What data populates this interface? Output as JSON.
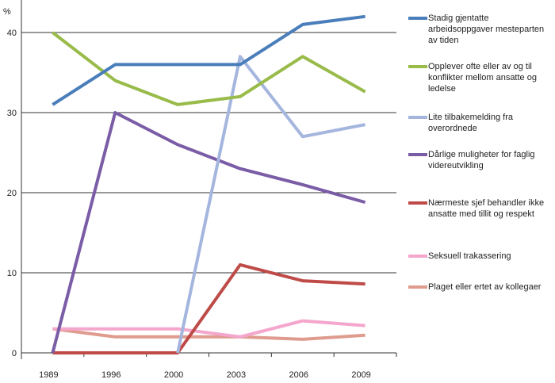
{
  "chart_data": {
    "type": "line",
    "ylabel": "%",
    "ylim": [
      0,
      40
    ],
    "yticks": [
      0,
      10,
      20,
      30,
      40
    ],
    "grid": true,
    "legend_position": "right",
    "categories": [
      "1989",
      "1996",
      "2000",
      "2003",
      "2006",
      "2009"
    ],
    "series": [
      {
        "name": "Stadig gjentatte arbeidsoppgaver mesteparten av tiden",
        "color": "#4a7ebb",
        "values": [
          31,
          36,
          36,
          36,
          41,
          42
        ]
      },
      {
        "name": "Opplever ofte eller av og til konflikter mellom ansatte og ledelse",
        "color": "#98bb4a",
        "values": [
          40,
          34,
          31,
          32,
          37,
          32.6
        ]
      },
      {
        "name": "Lite tilbakemelding fra overordnede",
        "color": "#a5b6de",
        "values": [
          null,
          null,
          0,
          37,
          27,
          28.5
        ]
      },
      {
        "name": "Dårlige muligheter for faglig videreutvikling",
        "color": "#7b5ca6",
        "values": [
          0,
          30,
          26,
          23,
          21,
          18.8
        ]
      },
      {
        "name": "Nærmeste sjef behandler ikke ansatte med tillit og respekt",
        "color": "#be4b48",
        "values": [
          0,
          0,
          0,
          11,
          9,
          8.6
        ]
      },
      {
        "name": "Seksuell trakassering",
        "color": "#f4a6cc",
        "values": [
          3,
          3,
          3,
          2,
          4,
          3.4
        ]
      },
      {
        "name": "Plaget eller ertet av kollegaer",
        "color": "#de9b8e",
        "values": [
          3,
          2,
          2,
          2,
          1.7,
          2.2
        ]
      }
    ]
  }
}
